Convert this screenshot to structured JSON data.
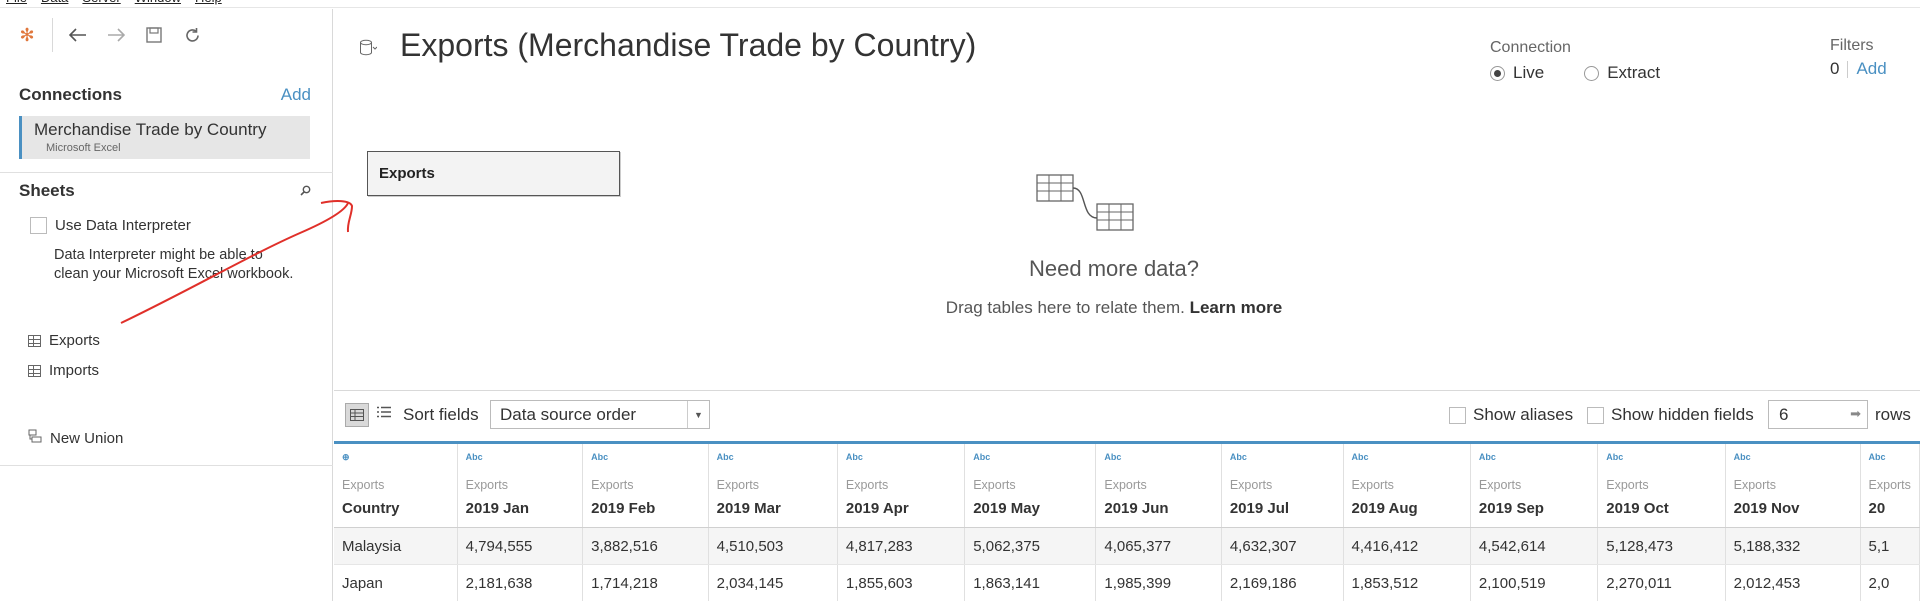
{
  "menu": [
    "File",
    "Data",
    "Server",
    "Window",
    "Help"
  ],
  "toolbar": {
    "logo_icon": "tableau-logo-icon",
    "back_icon": "arrow-left-icon",
    "forward_icon": "arrow-right-icon",
    "save_icon": "save-icon",
    "refresh_icon": "refresh-icon"
  },
  "connections": {
    "title": "Connections",
    "add_label": "Add",
    "item_name": "Merchandise Trade by Country",
    "item_type": "Microsoft Excel"
  },
  "sheets": {
    "title": "Sheets",
    "interpreter_label": "Use Data Interpreter",
    "interpreter_note": "Data Interpreter might be able to clean your Microsoft Excel workbook.",
    "items": [
      "Exports",
      "Imports"
    ],
    "new_union_label": "New Union"
  },
  "datasource": {
    "title": "Exports (Merchandise Trade by Country)"
  },
  "connection": {
    "label": "Connection",
    "live": "Live",
    "extract": "Extract"
  },
  "filters": {
    "label": "Filters",
    "count": "0",
    "add": "Add"
  },
  "canvas": {
    "table_name": "Exports",
    "need_more": "Need more data?",
    "drag_text": "Drag tables here to relate them. ",
    "learn_more": "Learn more"
  },
  "gridbar": {
    "sort_label": "Sort fields",
    "sort_value": "Data source order",
    "show_aliases": "Show aliases",
    "show_hidden": "Show hidden fields",
    "rows_value": "6",
    "rows_label": "rows"
  },
  "grid": {
    "columns": [
      {
        "icon": "⊕",
        "table": "Exports",
        "name": "Country"
      },
      {
        "icon": "Abc",
        "table": "Exports",
        "name": "2019 Jan"
      },
      {
        "icon": "Abc",
        "table": "Exports",
        "name": "2019 Feb"
      },
      {
        "icon": "Abc",
        "table": "Exports",
        "name": "2019 Mar"
      },
      {
        "icon": "Abc",
        "table": "Exports",
        "name": "2019 Apr"
      },
      {
        "icon": "Abc",
        "table": "Exports",
        "name": "2019 May"
      },
      {
        "icon": "Abc",
        "table": "Exports",
        "name": "2019 Jun"
      },
      {
        "icon": "Abc",
        "table": "Exports",
        "name": "2019 Jul"
      },
      {
        "icon": "Abc",
        "table": "Exports",
        "name": "2019 Aug"
      },
      {
        "icon": "Abc",
        "table": "Exports",
        "name": "2019 Sep"
      },
      {
        "icon": "Abc",
        "table": "Exports",
        "name": "2019 Oct"
      },
      {
        "icon": "Abc",
        "table": "Exports",
        "name": "2019 Nov"
      },
      {
        "icon": "Abc",
        "table": "Exports",
        "name": "20"
      }
    ],
    "rows": [
      [
        "Malaysia",
        "4,794,555",
        "3,882,516",
        "4,510,503",
        "4,817,283",
        "5,062,375",
        "4,065,377",
        "4,632,307",
        "4,416,412",
        "4,542,614",
        "5,128,473",
        "5,188,332",
        "5,1"
      ],
      [
        "Japan",
        "2,181,638",
        "1,714,218",
        "2,034,145",
        "1,855,603",
        "1,863,141",
        "1,985,399",
        "2,169,186",
        "1,853,512",
        "2,100,519",
        "2,270,011",
        "2,012,453",
        "2,0"
      ]
    ]
  },
  "colors": {
    "accent": "#4a90c2",
    "annotation": "#e0302a"
  }
}
